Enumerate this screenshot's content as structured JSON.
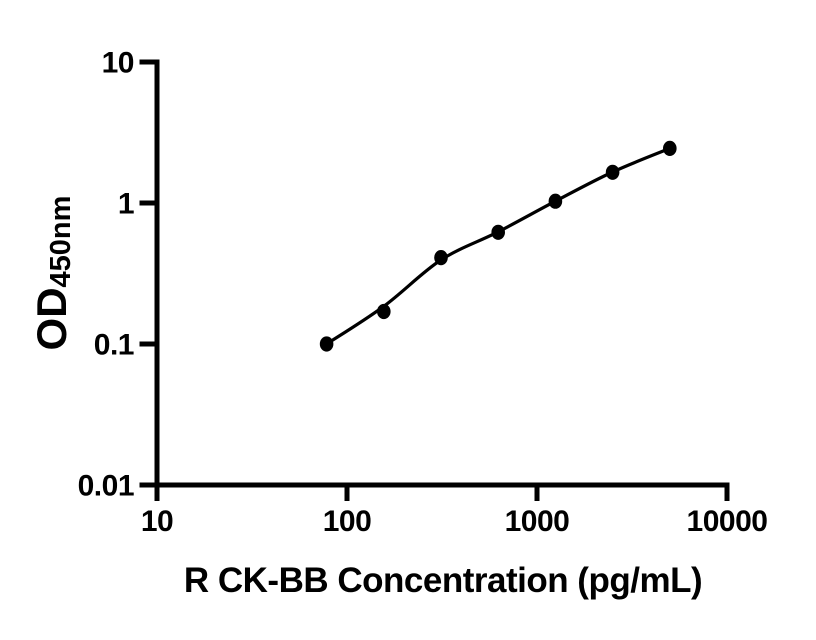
{
  "figure": {
    "background_color": "#ffffff",
    "ink_color": "#000000"
  },
  "chart_data": {
    "type": "scatter",
    "title": "",
    "xlabel": "R CK-BB Concentration (pg/mL)",
    "ylabel": "OD",
    "ylabel_subscript": "450nm",
    "x_scale": "log",
    "y_scale": "log",
    "xlim": [
      10,
      10000
    ],
    "ylim": [
      0.01,
      10
    ],
    "x_ticks": [
      10,
      100,
      1000,
      10000
    ],
    "x_tick_labels": [
      "10",
      "100",
      "1000",
      "10000"
    ],
    "y_ticks": [
      0.01,
      0.1,
      1,
      10
    ],
    "y_tick_labels": [
      "0.01",
      "0.1",
      "1",
      "10"
    ],
    "grid": false,
    "legend": false,
    "line_color": "#000000",
    "marker_color": "#000000",
    "marker_shape": "filled-circle",
    "points": [
      {
        "x": 78.125,
        "y": 0.1
      },
      {
        "x": 156.25,
        "y": 0.17
      },
      {
        "x": 312.5,
        "y": 0.41
      },
      {
        "x": 625,
        "y": 0.62
      },
      {
        "x": 1250,
        "y": 1.03
      },
      {
        "x": 2500,
        "y": 1.65
      },
      {
        "x": 5000,
        "y": 2.44
      }
    ],
    "fit_curve_od_at_points": [
      0.1,
      0.185,
      0.395,
      0.625,
      1.03,
      1.66,
      2.44
    ]
  }
}
